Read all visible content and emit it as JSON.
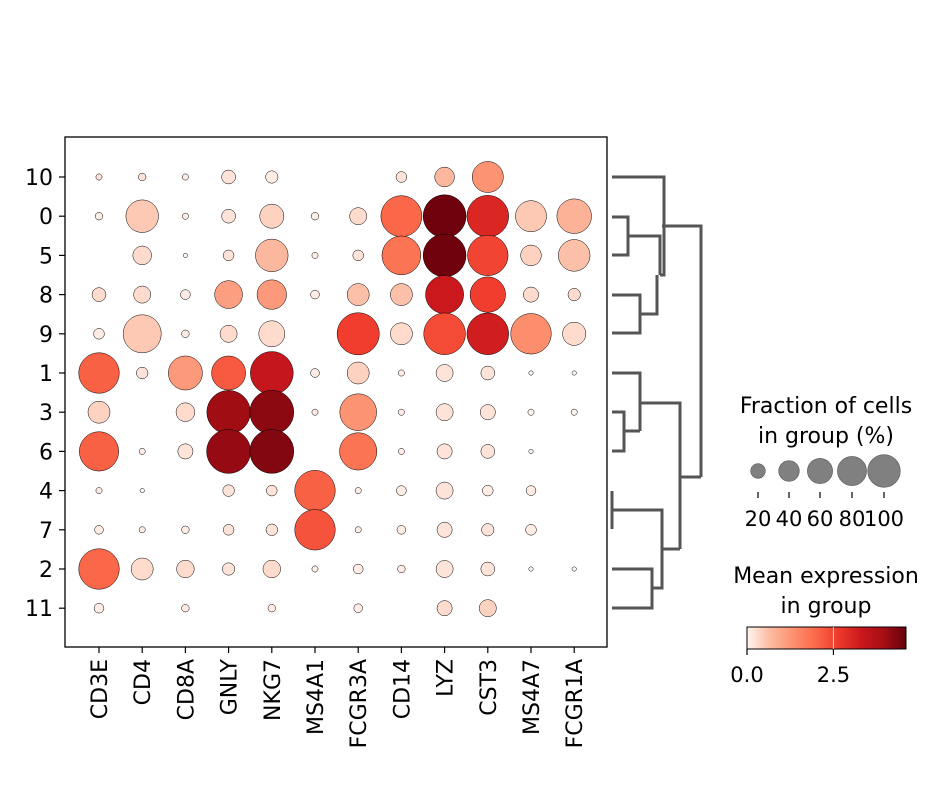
{
  "chart_data": {
    "type": "dotplot",
    "genes": [
      "CD3E",
      "CD4",
      "CD8A",
      "GNLY",
      "NKG7",
      "MS4A1",
      "FCGR3A",
      "CD14",
      "LYZ",
      "CST3",
      "MS4A7",
      "FCGR1A"
    ],
    "groups": [
      "10",
      "0",
      "5",
      "8",
      "9",
      "1",
      "3",
      "6",
      "4",
      "7",
      "2",
      "11"
    ],
    "fraction_pct": [
      [
        2,
        3,
        2,
        10,
        8,
        0,
        0,
        6,
        20,
        50,
        0,
        0
      ],
      [
        3,
        55,
        2,
        10,
        30,
        3,
        15,
        87,
        95,
        90,
        50,
        62
      ],
      [
        0,
        18,
        1,
        6,
        55,
        2,
        6,
        78,
        95,
        85,
        22,
        52
      ],
      [
        10,
        15,
        5,
        40,
        45,
        4,
        25,
        25,
        75,
        65,
        12,
        8
      ],
      [
        6,
        75,
        3,
        15,
        35,
        0,
        92,
        25,
        90,
        90,
        85,
        28
      ],
      [
        85,
        7,
        60,
        60,
        95,
        4,
        25,
        2,
        15,
        10,
        1,
        1
      ],
      [
        25,
        0,
        18,
        98,
        100,
        2,
        70,
        2,
        15,
        12,
        2,
        2
      ],
      [
        80,
        2,
        12,
        100,
        100,
        0,
        72,
        2,
        12,
        10,
        1,
        0
      ],
      [
        2,
        1,
        0,
        7,
        6,
        85,
        2,
        5,
        15,
        6,
        5,
        0
      ],
      [
        4,
        2,
        3,
        6,
        7,
        85,
        2,
        4,
        12,
        8,
        6,
        0
      ],
      [
        85,
        25,
        16,
        8,
        16,
        2,
        5,
        3,
        15,
        10,
        1,
        1
      ],
      [
        5,
        0,
        3,
        0,
        3,
        0,
        4,
        0,
        12,
        15,
        0,
        0
      ]
    ],
    "mean_expr": [
      [
        0.2,
        0.2,
        0.1,
        0.2,
        0.1,
        0,
        0,
        0.2,
        0.7,
        1.3,
        0,
        0
      ],
      [
        0.1,
        0.5,
        0.1,
        0.2,
        0.4,
        0.1,
        0.3,
        2.0,
        4.5,
        3.0,
        0.5,
        0.8
      ],
      [
        0,
        0.3,
        0,
        0.2,
        0.7,
        0.1,
        0.2,
        1.8,
        4.5,
        2.5,
        0.4,
        0.6
      ],
      [
        0.3,
        0.3,
        0.1,
        1.1,
        1.2,
        0.1,
        0.6,
        0.6,
        3.3,
        2.6,
        0.3,
        0.3
      ],
      [
        0.1,
        0.5,
        0.1,
        0.3,
        0.3,
        0,
        2.6,
        0.3,
        2.4,
        3.2,
        1.4,
        0.3
      ],
      [
        2.1,
        0.2,
        1.2,
        2.2,
        3.4,
        0.1,
        0.4,
        0.1,
        0.2,
        0.2,
        0,
        0
      ],
      [
        0.4,
        0,
        0.3,
        4.0,
        4.2,
        0.1,
        1.3,
        0.1,
        0.2,
        0.2,
        0,
        0
      ],
      [
        2.1,
        0.1,
        0.2,
        4.1,
        4.3,
        0,
        1.8,
        0.1,
        0.2,
        0.2,
        0,
        0
      ],
      [
        0.1,
        0,
        0,
        0.2,
        0.2,
        2.1,
        0.1,
        0.1,
        0.2,
        0.1,
        0.1,
        0
      ],
      [
        0.1,
        0.1,
        0.1,
        0.2,
        0.2,
        2.3,
        0.1,
        0.1,
        0.2,
        0.2,
        0.1,
        0
      ],
      [
        2.0,
        0.3,
        0.3,
        0.2,
        0.3,
        0.1,
        0.1,
        0.1,
        0.2,
        0.2,
        0,
        0
      ],
      [
        0.1,
        0,
        0.1,
        0,
        0.1,
        0,
        0.1,
        0,
        0.3,
        0.4,
        0,
        0
      ]
    ],
    "vmax": 4.6,
    "legend": {
      "size_title": [
        "Fraction of cells",
        "in group (%)"
      ],
      "size_ticks": [
        20,
        40,
        60,
        80,
        100
      ],
      "color_title": [
        "Mean expression",
        "in group"
      ],
      "color_ticks": [
        0.0,
        2.5
      ],
      "color_tick_labels": [
        "0.0",
        "2.5"
      ],
      "colormap": "Reds",
      "color_stops": [
        "#fff5f0",
        "#fcbba1",
        "#fc9272",
        "#fb6a4a",
        "#ef3b2c",
        "#cb181d",
        "#a50f15",
        "#67000d"
      ]
    },
    "dendrogram": true,
    "grid": false
  }
}
